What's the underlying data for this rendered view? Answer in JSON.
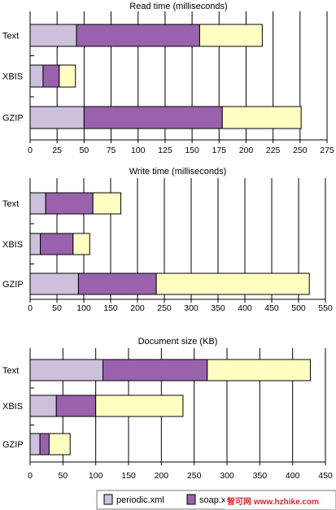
{
  "chart_data": [
    {
      "type": "bar",
      "orientation": "horizontal",
      "stacked": true,
      "title": "Read time (milliseconds)",
      "categories": [
        "Text",
        "XBIS",
        "GZIP"
      ],
      "series": [
        {
          "name": "periodic.xml",
          "color": "#ccc0dc",
          "values": [
            43,
            12,
            50
          ]
        },
        {
          "name": "soap.xml",
          "color": "#9a62ac",
          "values": [
            114,
            15,
            128
          ]
        },
        {
          "name": "",
          "color": "#ffffc2",
          "values": [
            58,
            15,
            73
          ]
        }
      ],
      "xlim": [
        0,
        275
      ],
      "xticks": [
        0,
        25,
        50,
        75,
        100,
        125,
        150,
        175,
        200,
        225,
        250,
        275
      ],
      "grid": "vertical"
    },
    {
      "type": "bar",
      "orientation": "horizontal",
      "stacked": true,
      "title": "Write time (milliseconds)",
      "categories": [
        "Text",
        "XBIS",
        "GZIP"
      ],
      "series": [
        {
          "name": "periodic.xml",
          "color": "#ccc0dc",
          "values": [
            29,
            19,
            90
          ]
        },
        {
          "name": "soap.xml",
          "color": "#9a62ac",
          "values": [
            88,
            61,
            145
          ]
        },
        {
          "name": "",
          "color": "#ffffc2",
          "values": [
            52,
            31,
            285
          ]
        }
      ],
      "xlim": [
        0,
        550
      ],
      "xticks": [
        0,
        50,
        100,
        150,
        200,
        250,
        300,
        350,
        400,
        450,
        500,
        550
      ],
      "grid": "vertical"
    },
    {
      "type": "bar",
      "orientation": "horizontal",
      "stacked": true,
      "title": "Document size (KB)",
      "categories": [
        "Text",
        "XBIS",
        "GZIP"
      ],
      "series": [
        {
          "name": "periodic.xml",
          "color": "#ccc0dc",
          "values": [
            111,
            40,
            15
          ]
        },
        {
          "name": "soap.xml",
          "color": "#9a62ac",
          "values": [
            159,
            60,
            14
          ]
        },
        {
          "name": "",
          "color": "#ffffc2",
          "values": [
            157,
            133,
            32
          ]
        }
      ],
      "xlim": [
        0,
        450
      ],
      "xticks": [
        0,
        50,
        100,
        150,
        200,
        250,
        300,
        350,
        400,
        450
      ],
      "grid": "vertical"
    }
  ],
  "legend": {
    "items": [
      {
        "label": "periodic.xml",
        "color": "#ccc0dc"
      },
      {
        "label": "soap.xn",
        "color": "#9a62ac"
      }
    ],
    "placement": "bottom-right"
  },
  "watermark": {
    "text": "智可网 www.hzhike.com",
    "color": "#d9262c"
  }
}
